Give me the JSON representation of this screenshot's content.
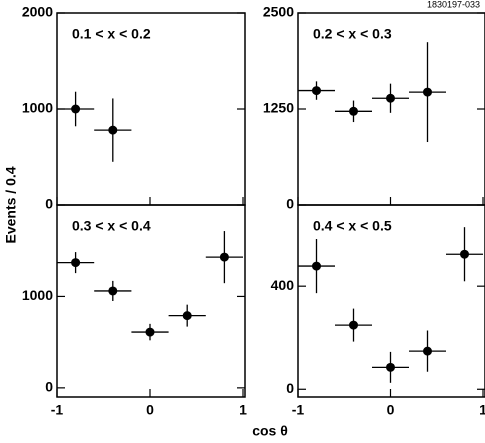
{
  "figure_id": "1830197-033",
  "ylabel": "Events / 0.4",
  "xlabel": "cos θ",
  "chart_data": [
    {
      "type": "errorbar",
      "title": "0.1 < x < 0.2",
      "x": [
        -0.8,
        -0.4
      ],
      "values": [
        1000,
        780
      ],
      "yerr": [
        180,
        330
      ],
      "xerr": 0.2,
      "xlim": [
        -1,
        1
      ],
      "xticks": [
        -1,
        0,
        1
      ],
      "ylim": [
        0,
        2000
      ],
      "yticks": [
        0,
        1000,
        2000
      ],
      "color": "#000000"
    },
    {
      "type": "errorbar",
      "title": "0.2 < x < 0.3",
      "x": [
        -0.8,
        -0.4,
        0,
        0.4
      ],
      "values": [
        1490,
        1220,
        1390,
        1470
      ],
      "yerr": [
        120,
        140,
        190,
        650
      ],
      "xerr": 0.2,
      "xlim": [
        -1,
        1
      ],
      "xticks": [
        -1,
        0,
        1
      ],
      "ylim": [
        0,
        2500
      ],
      "yticks": [
        0,
        1250,
        2500
      ],
      "color": "#000000"
    },
    {
      "type": "errorbar",
      "title": "0.3 < x < 0.4",
      "x": [
        -0.8,
        -0.4,
        0,
        0.4,
        0.8
      ],
      "values": [
        1370,
        1060,
        610,
        790,
        1430
      ],
      "yerr": [
        115,
        110,
        90,
        120,
        285
      ],
      "xerr": 0.2,
      "xlim": [
        -1,
        1
      ],
      "xticks": [
        -1,
        0,
        1
      ],
      "ylim": [
        -100,
        2000
      ],
      "yticks": [
        0,
        1000
      ],
      "color": "#000000"
    },
    {
      "type": "errorbar",
      "title": "0.4 < x < 0.5",
      "x": [
        -0.8,
        -0.4,
        0,
        0.4,
        0.8
      ],
      "values": [
        478,
        249,
        85,
        148,
        524
      ],
      "yerr": [
        105,
        64,
        60,
        80,
        105
      ],
      "xerr": 0.2,
      "xlim": [
        -1,
        1
      ],
      "xticks": [
        -1,
        0,
        1
      ],
      "ylim": [
        -30,
        715
      ],
      "yticks": [
        0,
        400
      ],
      "color": "#000000"
    }
  ]
}
